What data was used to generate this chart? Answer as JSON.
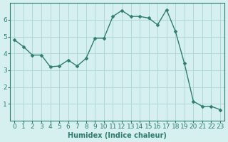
{
  "x": [
    0,
    1,
    2,
    3,
    4,
    5,
    6,
    7,
    8,
    9,
    10,
    11,
    12,
    13,
    14,
    15,
    16,
    17,
    18,
    19,
    20,
    21,
    22,
    23
  ],
  "y": [
    4.8,
    4.4,
    3.9,
    3.9,
    3.2,
    3.25,
    3.6,
    3.25,
    3.7,
    4.9,
    4.9,
    6.2,
    6.55,
    6.2,
    6.2,
    6.1,
    5.7,
    6.6,
    5.3,
    3.4,
    1.15,
    0.85,
    0.85,
    0.65
  ],
  "line_color": "#2e7d6e",
  "marker": "D",
  "marker_size": 2.5,
  "bg_color": "#d6f0f0",
  "grid_color": "#b0d8d8",
  "tick_color": "#2e7d6e",
  "label_color": "#2e7d6e",
  "xlabel": "Humidex (Indice chaleur)",
  "xlim": [
    -0.5,
    23.5
  ],
  "ylim": [
    0,
    7
  ],
  "yticks": [
    1,
    2,
    3,
    4,
    5,
    6
  ],
  "xticks": [
    0,
    1,
    2,
    3,
    4,
    5,
    6,
    7,
    8,
    9,
    10,
    11,
    12,
    13,
    14,
    15,
    16,
    17,
    18,
    19,
    20,
    21,
    22,
    23
  ],
  "font_size_label": 7,
  "font_size_tick": 6.5
}
